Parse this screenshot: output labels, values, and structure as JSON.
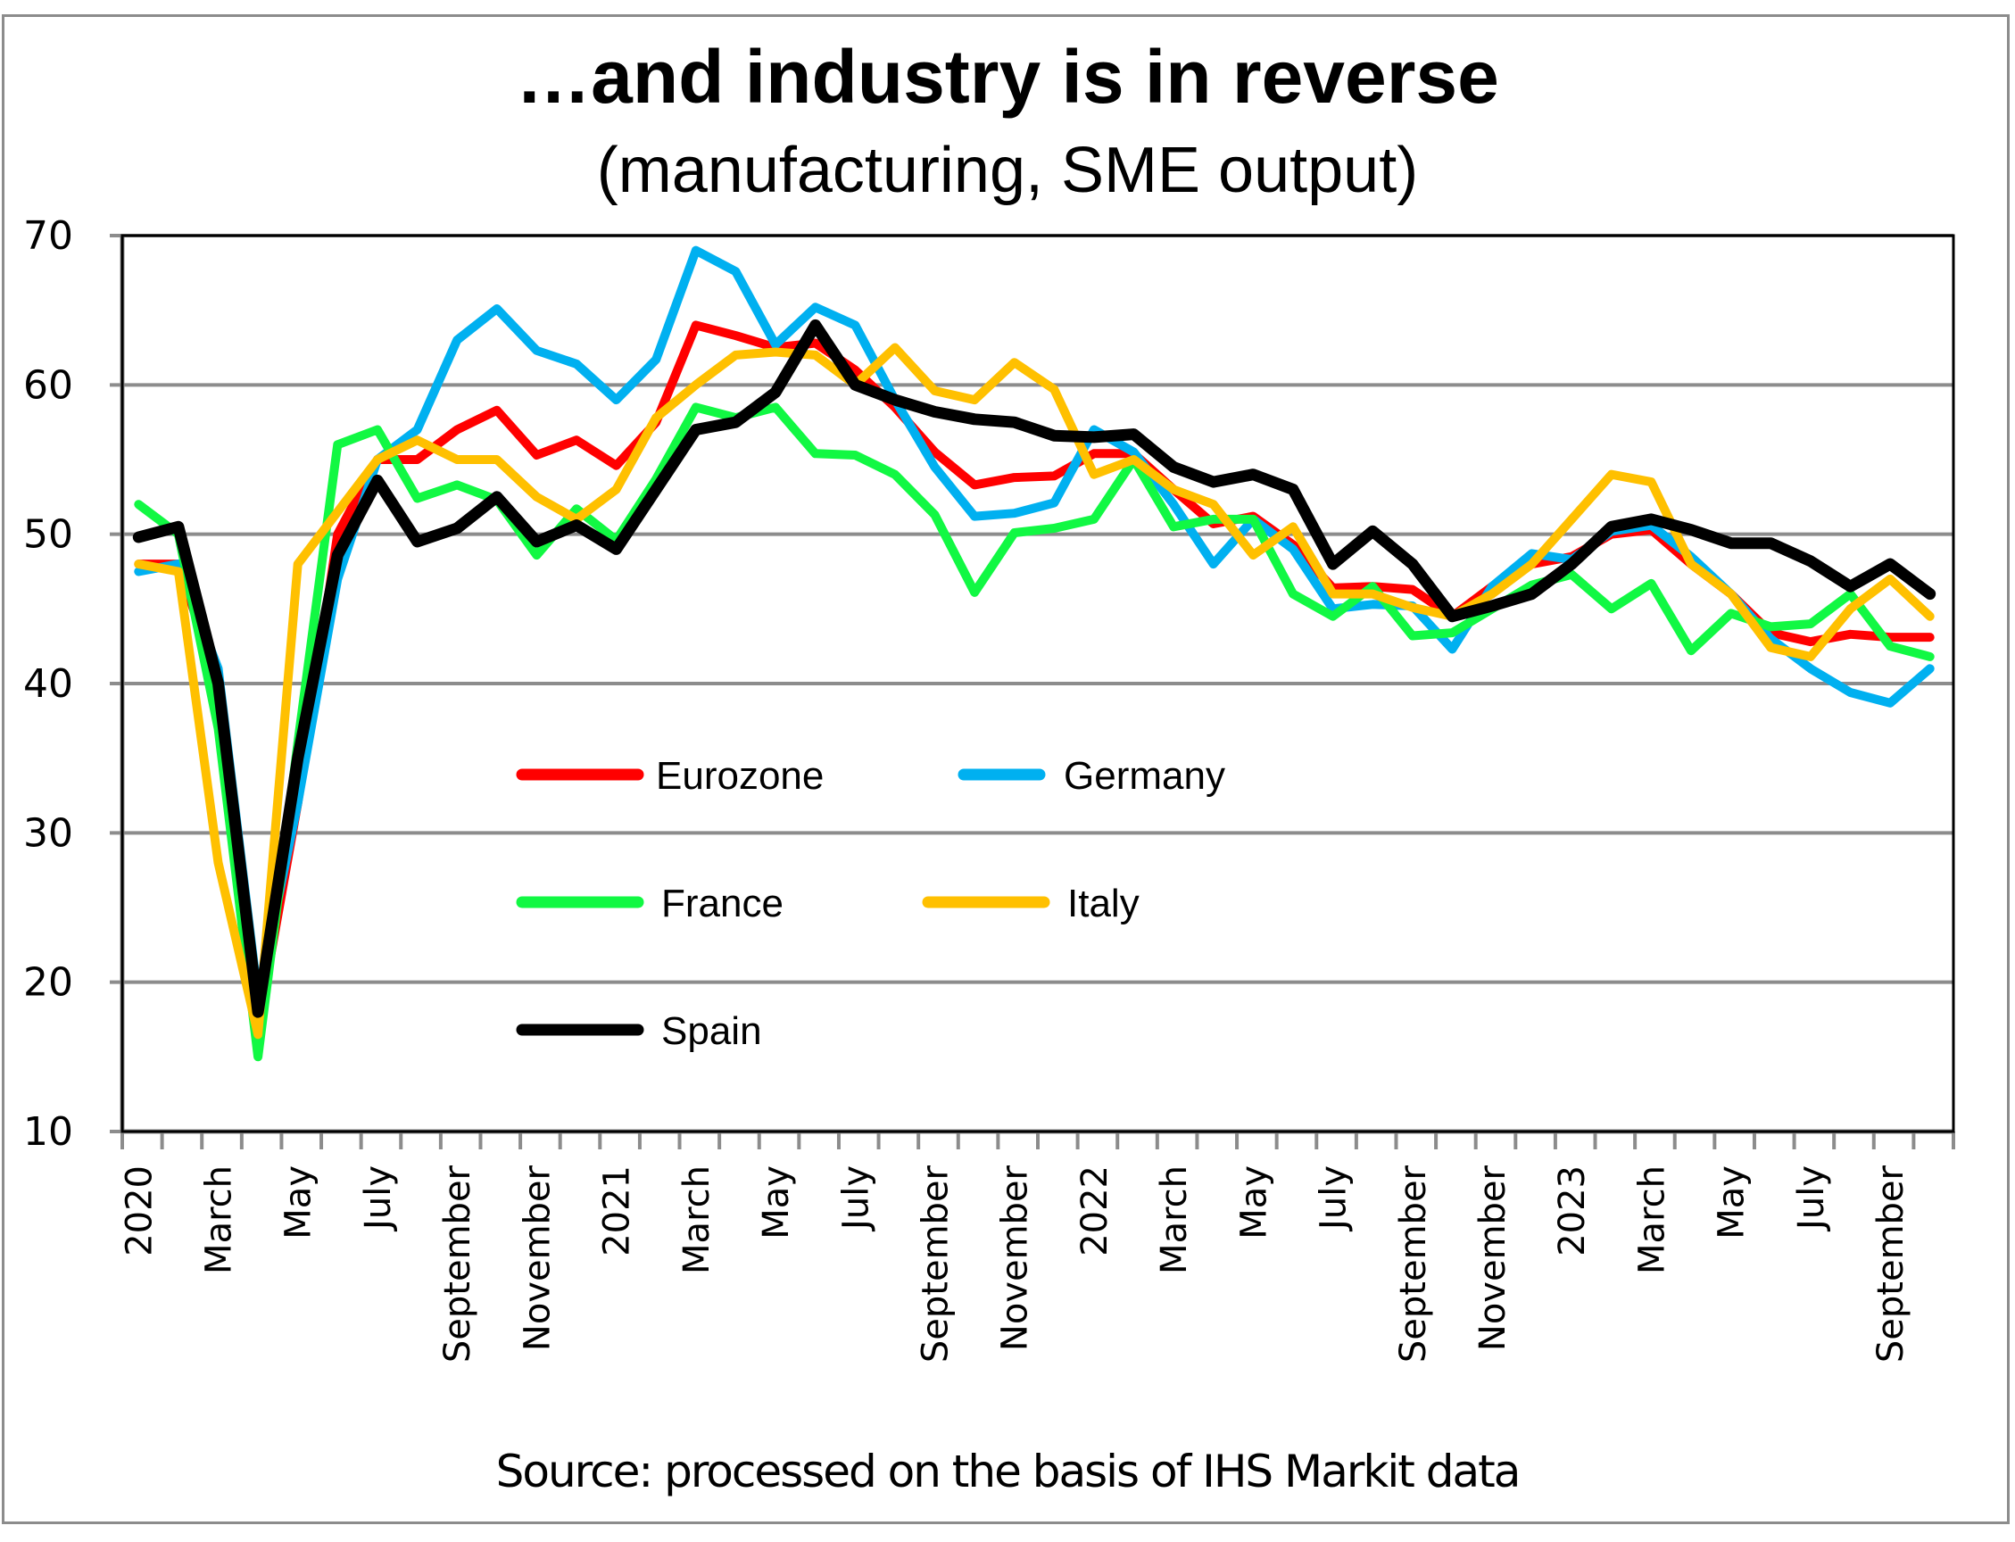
{
  "chart_data": {
    "type": "line",
    "title": "…and industry is in reverse",
    "subtitle": "(manufacturing, SME output)",
    "xlabel": "",
    "ylabel": "",
    "ylim": [
      10,
      70
    ],
    "yticks": [
      10,
      20,
      30,
      40,
      50,
      60,
      70
    ],
    "grid": true,
    "legend_position": "center-inside",
    "source": "Source: processed on the basis of IHS Markit data",
    "x": [
      "Jan 2020",
      "Feb 2020",
      "Mar 2020",
      "Apr 2020",
      "May 2020",
      "Jun 2020",
      "Jul 2020",
      "Aug 2020",
      "Sep 2020",
      "Oct 2020",
      "Nov 2020",
      "Dec 2020",
      "Jan 2021",
      "Feb 2021",
      "Mar 2021",
      "Apr 2021",
      "May 2021",
      "Jun 2021",
      "Jul 2021",
      "Aug 2021",
      "Sep 2021",
      "Oct 2021",
      "Nov 2021",
      "Dec 2021",
      "Jan 2022",
      "Feb 2022",
      "Mar 2022",
      "Apr 2022",
      "May 2022",
      "Jun 2022",
      "Jul 2022",
      "Aug 2022",
      "Sep 2022",
      "Oct 2022",
      "Nov 2022",
      "Dec 2022",
      "Jan 2023",
      "Feb 2023",
      "Mar 2023",
      "Apr 2023",
      "May 2023",
      "Jun 2023",
      "Jul 2023",
      "Aug 2023",
      "Sep 2023",
      "Oct 2023"
    ],
    "tick_labels": [
      "2020",
      "",
      "March",
      "",
      "May",
      "",
      "July",
      "",
      "September",
      "",
      "November",
      "",
      "2021",
      "",
      "March",
      "",
      "May",
      "",
      "July",
      "",
      "September",
      "",
      "November",
      "",
      "2022",
      "",
      "March",
      "",
      "May",
      "",
      "July",
      "",
      "September",
      "",
      "November",
      "",
      "2023",
      "",
      "March",
      "",
      "May",
      "",
      "July",
      "",
      "September",
      ""
    ],
    "series": [
      {
        "name": "Eurozone",
        "color": "#ff0000",
        "values": [
          48,
          48,
          40,
          17,
          32,
          50,
          55,
          55,
          57,
          58.3,
          55.3,
          56.3,
          54.6,
          57.5,
          64,
          63.3,
          62.5,
          62.8,
          61,
          58.5,
          55.5,
          53.3,
          53.8,
          53.9,
          55.4,
          55.4,
          53,
          50.7,
          51.2,
          49.3,
          46.4,
          46.5,
          46.3,
          44.5,
          46.5,
          48,
          48.5,
          50,
          50.3,
          48,
          46,
          43.4,
          42.8,
          43.3,
          43.1,
          43.1
        ]
      },
      {
        "name": "Germany",
        "color": "#00b0f0",
        "values": [
          47.5,
          48,
          41,
          19,
          32,
          47,
          55,
          57,
          63,
          65.1,
          62.3,
          61.4,
          59,
          61.7,
          69,
          67.6,
          62.7,
          65.2,
          64,
          59,
          54.5,
          51.2,
          51.4,
          52.1,
          57,
          55.5,
          52,
          48,
          51,
          49,
          45,
          45.3,
          45.2,
          42.3,
          46.5,
          48.7,
          48.3,
          50.2,
          50.6,
          48.5,
          46,
          43,
          41,
          39.4,
          38.7,
          41
        ]
      },
      {
        "name": "France",
        "color": "#11f843",
        "values": [
          52,
          50,
          37,
          15,
          36,
          56,
          57,
          52.4,
          53.3,
          52.3,
          48.6,
          51.7,
          49.6,
          53.7,
          58.5,
          57.8,
          58.5,
          55.4,
          55.3,
          54,
          51.3,
          46.1,
          50.1,
          50.4,
          51,
          55,
          50.5,
          51,
          51,
          46,
          44.5,
          46.5,
          43.2,
          43.4,
          45,
          46.6,
          47.3,
          45,
          46.7,
          42.2,
          44.7,
          43.8,
          44,
          46,
          42.5,
          41.8
        ]
      },
      {
        "name": "Italy",
        "color": "#ffc000",
        "values": [
          48,
          47.5,
          28,
          16.5,
          48,
          51.5,
          55,
          56.3,
          55,
          55,
          52.5,
          51,
          53,
          57.8,
          60,
          62,
          62.2,
          62,
          60,
          62.5,
          59.6,
          59,
          61.5,
          59.7,
          54,
          55,
          53,
          52,
          48.6,
          50.5,
          46,
          46,
          45.1,
          44.5,
          46,
          48,
          51,
          54,
          53.5,
          48,
          46,
          42.4,
          41.8,
          45,
          47,
          44.5
        ]
      },
      {
        "name": "Spain",
        "color": "#000000",
        "values": [
          49.8,
          50.5,
          40,
          18,
          35,
          48.6,
          53.6,
          49.5,
          50.4,
          52.5,
          49.5,
          50.6,
          49,
          53,
          57,
          57.5,
          59.5,
          64,
          60,
          59,
          58.2,
          57.7,
          57.5,
          56.6,
          56.5,
          56.7,
          54.5,
          53.5,
          54,
          53,
          48,
          50.2,
          48,
          44.5,
          45.2,
          46,
          48,
          50.5,
          51,
          50.3,
          49.4,
          49.4,
          48.2,
          46.5,
          48,
          46
        ]
      }
    ]
  }
}
